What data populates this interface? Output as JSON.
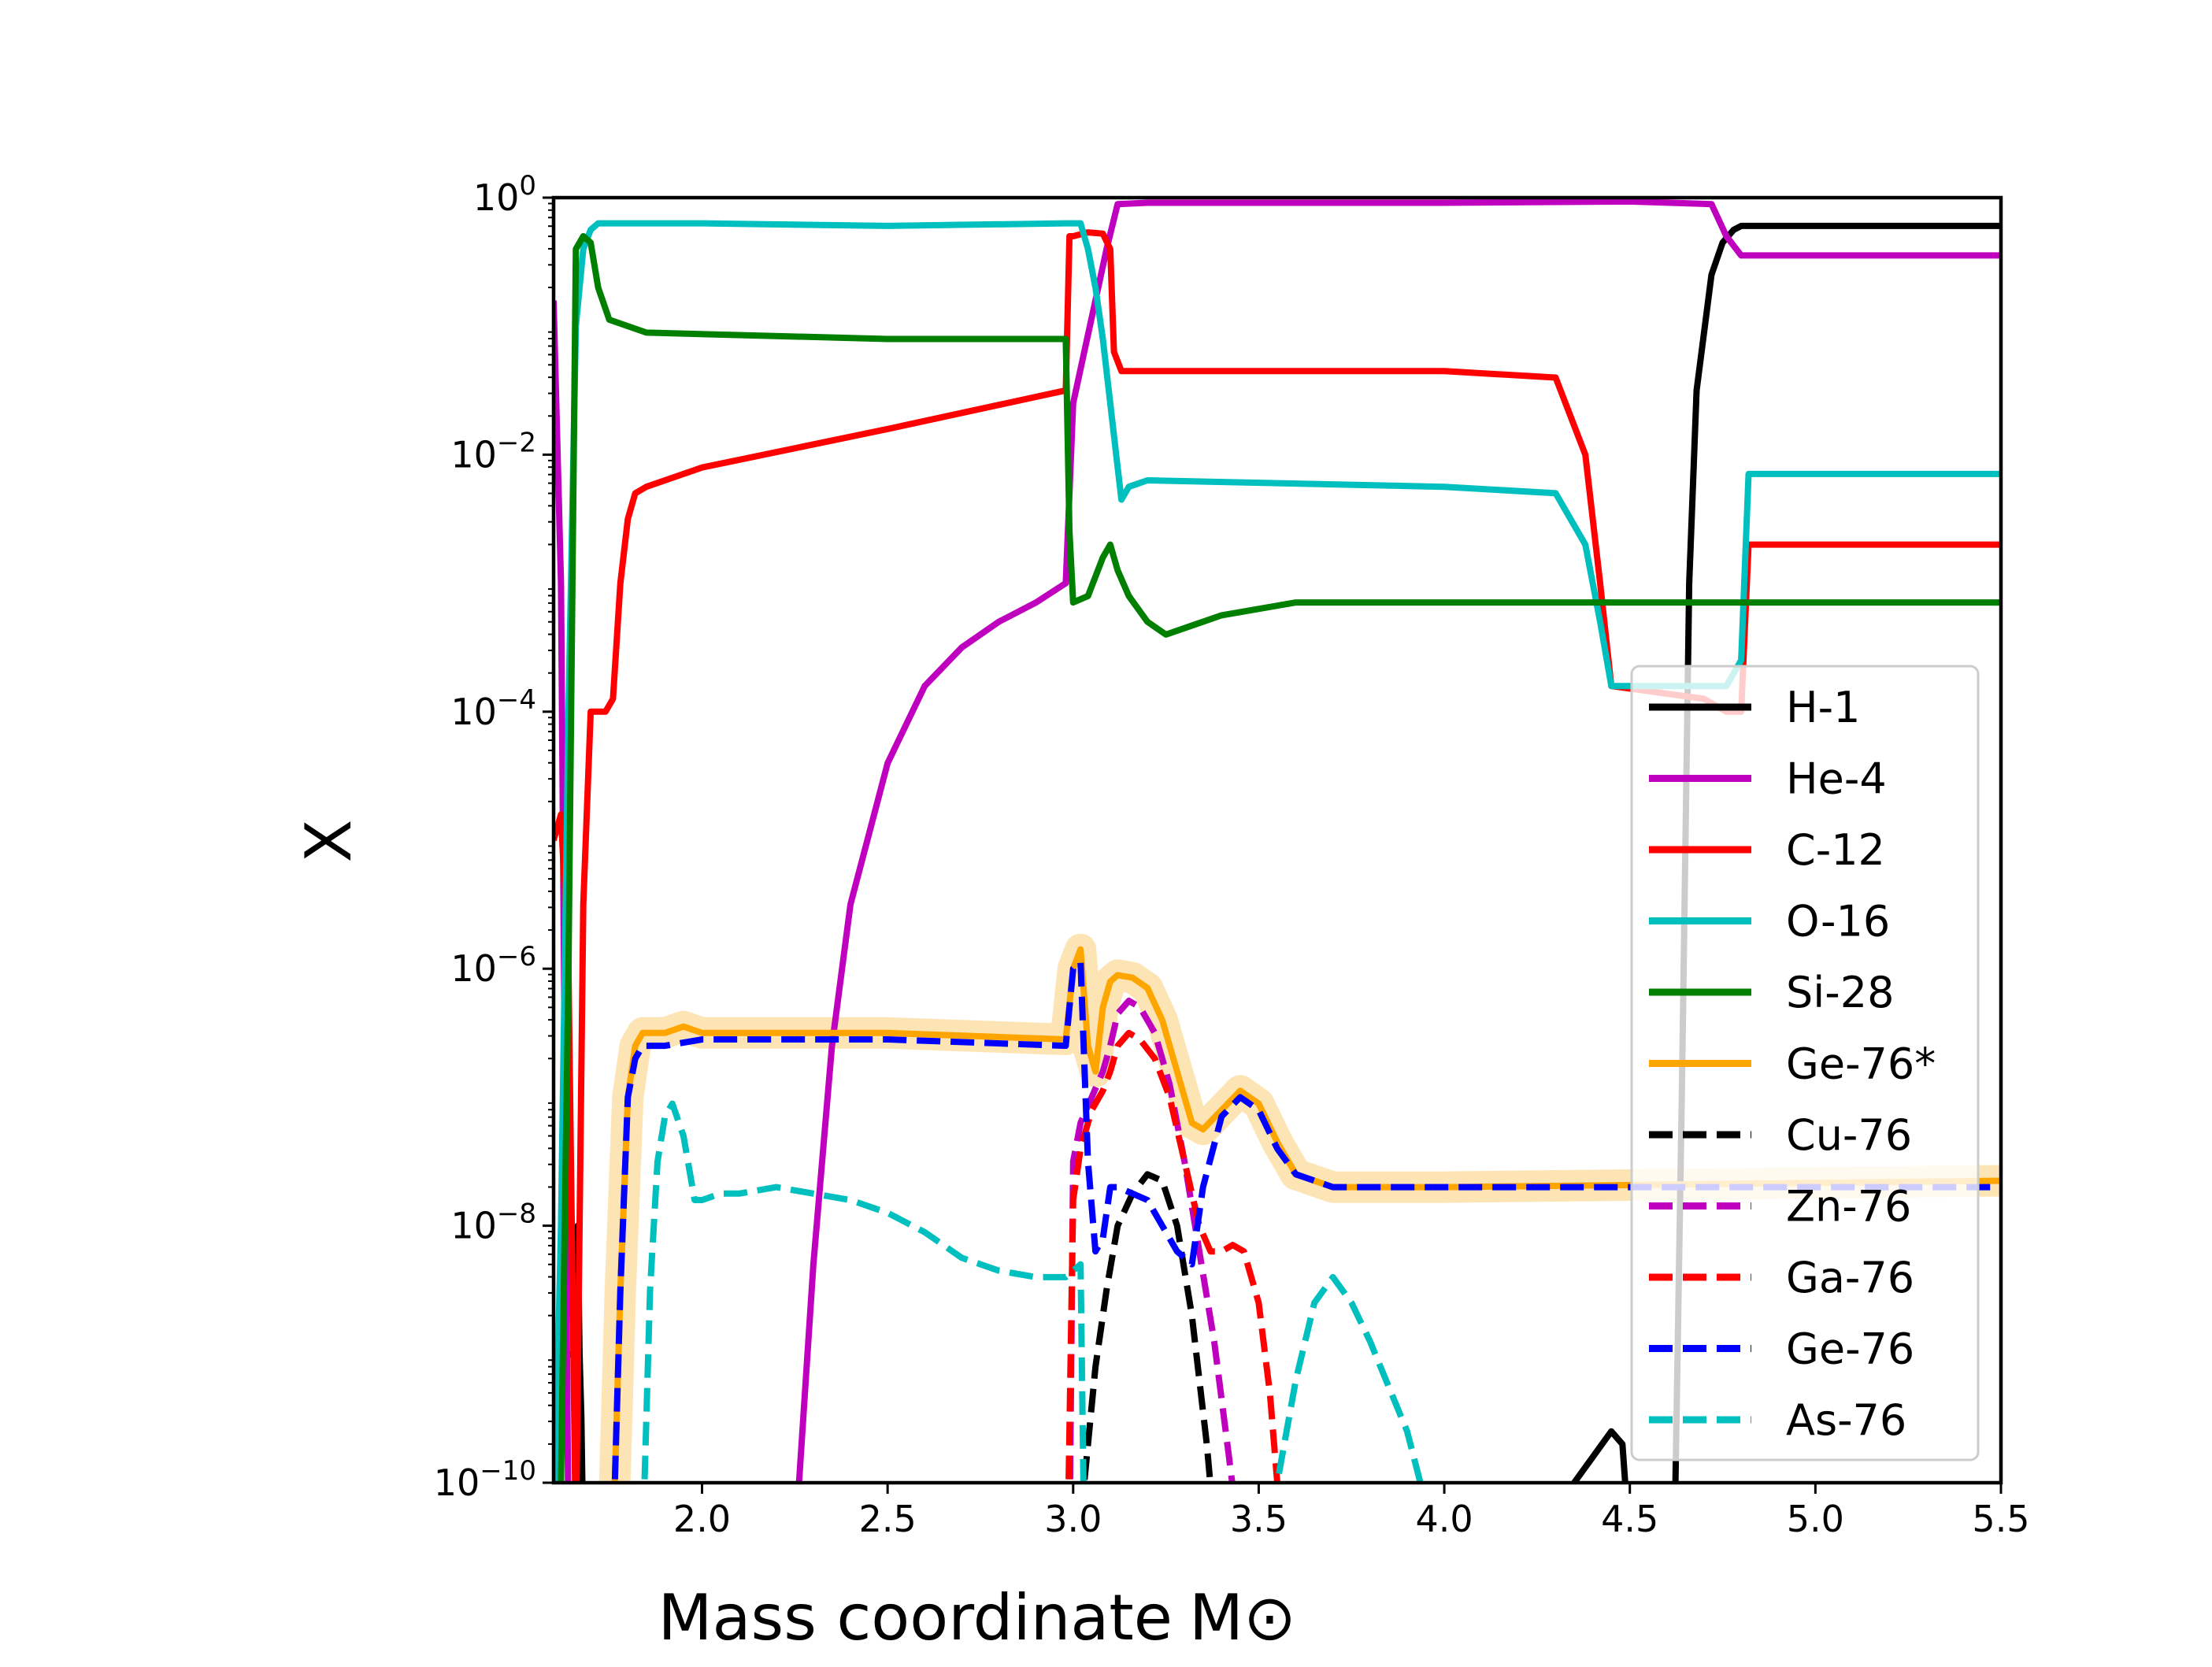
{
  "chart_data": {
    "type": "line",
    "title": "",
    "xlabel": "Mass coordinate",
    "xlabel_unit": "M⊙",
    "ylabel": "X",
    "xlim": [
      1.6,
      5.5
    ],
    "ylim": [
      1e-10,
      1.0
    ],
    "yscale": "log",
    "grid": false,
    "legend_position": "center-right",
    "x_ticks": [
      2.0,
      2.5,
      3.0,
      3.5,
      4.0,
      4.5,
      5.0,
      5.5
    ],
    "x_tick_labels": [
      "2.0",
      "2.5",
      "3.0",
      "3.5",
      "4.0",
      "4.5",
      "5.0",
      "5.5"
    ],
    "y_ticks": [
      {
        "exp": 0,
        "base": "10",
        "sup": "0"
      },
      {
        "exp": -2,
        "base": "10",
        "sup": "−2"
      },
      {
        "exp": -4,
        "base": "10",
        "sup": "−4"
      },
      {
        "exp": -6,
        "base": "10",
        "sup": "−6"
      },
      {
        "exp": -8,
        "base": "10",
        "sup": "−8"
      },
      {
        "exp": -10,
        "base": "10",
        "sup": "−10"
      }
    ],
    "series": [
      {
        "name": "H-1",
        "color": "#000000",
        "style": "solid",
        "x": [
          1.61,
          1.66,
          1.665,
          1.67,
          1.675,
          1.68,
          4.3,
          4.35,
          4.4,
          4.45,
          4.48,
          4.5,
          4.62,
          4.64,
          4.66,
          4.68,
          4.72,
          4.75,
          4.78,
          4.8,
          5.5
        ],
        "logy": [
          -9.0,
          -9.0,
          -8.0,
          -9.0,
          -9.5,
          -10.5,
          -10.5,
          -10.0,
          -9.8,
          -9.6,
          -9.7,
          -10.5,
          -10.5,
          -7.0,
          -3.0,
          -1.5,
          -0.6,
          -0.35,
          -0.25,
          -0.22,
          -0.22
        ]
      },
      {
        "name": "He-4",
        "color": "#bf00bf",
        "style": "solid",
        "x": [
          1.6,
          1.62,
          1.64,
          2.25,
          2.3,
          2.35,
          2.4,
          2.5,
          2.6,
          2.7,
          2.8,
          2.9,
          2.98,
          3.0,
          3.03,
          3.06,
          3.09,
          3.12,
          3.2,
          4.0,
          4.5,
          4.72,
          4.76,
          4.8,
          5.5
        ],
        "logy": [
          -0.8,
          -3.0,
          -10.5,
          -10.5,
          -8.3,
          -6.6,
          -5.5,
          -4.4,
          -3.8,
          -3.5,
          -3.3,
          -3.15,
          -3.0,
          -1.6,
          -1.2,
          -0.8,
          -0.4,
          -0.05,
          -0.04,
          -0.04,
          -0.03,
          -0.05,
          -0.3,
          -0.45,
          -0.45
        ]
      },
      {
        "name": "C-12",
        "color": "#ff0000",
        "style": "solid",
        "x": [
          1.6,
          1.62,
          1.64,
          1.66,
          1.68,
          1.7,
          1.72,
          1.74,
          1.76,
          1.78,
          1.8,
          1.82,
          1.85,
          1.9,
          2.0,
          2.5,
          2.98,
          2.99,
          3.0,
          3.04,
          3.08,
          3.1,
          3.11,
          3.13,
          3.2,
          4.0,
          4.3,
          4.38,
          4.42,
          4.45,
          4.7,
          4.76,
          4.8,
          4.82,
          5.5
        ],
        "logy": [
          -5.0,
          -4.8,
          -6.0,
          -10.5,
          -5.5,
          -4.0,
          -4.0,
          -4.0,
          -3.9,
          -3.0,
          -2.5,
          -2.3,
          -2.25,
          -2.2,
          -2.1,
          -1.8,
          -1.5,
          -0.3,
          -0.3,
          -0.27,
          -0.28,
          -0.4,
          -1.2,
          -1.35,
          -1.35,
          -1.35,
          -1.4,
          -2.0,
          -3.0,
          -3.8,
          -3.9,
          -4.0,
          -4.0,
          -2.7,
          -2.7
        ]
      },
      {
        "name": "O-16",
        "color": "#00bfbf",
        "style": "solid",
        "x": [
          1.6,
          1.62,
          1.64,
          1.66,
          1.68,
          1.7,
          1.72,
          1.74,
          2.0,
          2.5,
          2.98,
          3.02,
          3.04,
          3.06,
          3.08,
          3.1,
          3.12,
          3.13,
          3.15,
          3.2,
          4.0,
          4.3,
          4.38,
          4.42,
          4.45,
          4.7,
          4.76,
          4.8,
          4.82,
          5.5
        ],
        "logy": [
          -10.5,
          -8.0,
          -4.0,
          -1.0,
          -0.4,
          -0.25,
          -0.2,
          -0.2,
          -0.2,
          -0.22,
          -0.2,
          -0.2,
          -0.4,
          -0.7,
          -1.1,
          -1.6,
          -2.1,
          -2.35,
          -2.25,
          -2.2,
          -2.25,
          -2.3,
          -2.7,
          -3.3,
          -3.8,
          -3.8,
          -3.8,
          -3.6,
          -2.15,
          -2.15
        ]
      },
      {
        "name": "Si-28",
        "color": "#007f00",
        "style": "solid",
        "x": [
          1.6,
          1.62,
          1.64,
          1.66,
          1.68,
          1.7,
          1.72,
          1.75,
          1.85,
          2.5,
          2.98,
          2.99,
          3.0,
          3.04,
          3.08,
          3.1,
          3.12,
          3.15,
          3.2,
          3.25,
          3.3,
          3.4,
          3.6,
          4.0,
          5.5
        ],
        "logy": [
          -10.5,
          -10.0,
          -6.0,
          -0.4,
          -0.3,
          -0.35,
          -0.7,
          -0.95,
          -1.05,
          -1.1,
          -1.1,
          -2.6,
          -3.15,
          -3.1,
          -2.8,
          -2.7,
          -2.9,
          -3.1,
          -3.3,
          -3.4,
          -3.35,
          -3.25,
          -3.15,
          -3.15,
          -3.15
        ]
      },
      {
        "name": "Ge-76*",
        "color": "#ffa500",
        "style": "solid",
        "halo": "#fde1ac",
        "x": [
          1.76,
          1.78,
          1.8,
          1.82,
          1.84,
          1.9,
          1.95,
          2.0,
          2.5,
          2.98,
          3.0,
          3.02,
          3.04,
          3.06,
          3.08,
          3.1,
          3.12,
          3.16,
          3.2,
          3.24,
          3.28,
          3.32,
          3.35,
          3.4,
          3.45,
          3.5,
          3.55,
          3.6,
          3.7,
          4.0,
          5.5
        ],
        "logy": [
          -10.5,
          -8.5,
          -7.0,
          -6.6,
          -6.5,
          -6.5,
          -6.45,
          -6.5,
          -6.5,
          -6.55,
          -6.0,
          -5.85,
          -6.6,
          -6.8,
          -6.3,
          -6.1,
          -6.05,
          -6.07,
          -6.15,
          -6.4,
          -6.8,
          -7.2,
          -7.25,
          -7.1,
          -6.95,
          -7.05,
          -7.35,
          -7.6,
          -7.7,
          -7.7,
          -7.65
        ]
      },
      {
        "name": "Cu-76",
        "color": "#000000",
        "style": "dashed",
        "x": [
          3.01,
          3.03,
          3.06,
          3.09,
          3.12,
          3.16,
          3.2,
          3.24,
          3.28,
          3.32,
          3.36,
          3.385
        ],
        "logy": [
          -10.5,
          -10.0,
          -9.1,
          -8.5,
          -8.0,
          -7.75,
          -7.6,
          -7.65,
          -8.0,
          -8.7,
          -9.7,
          -10.5
        ]
      },
      {
        "name": "Zn-76",
        "color": "#bf00bf",
        "style": "dashed",
        "x": [
          2.99,
          3.0,
          3.02,
          3.05,
          3.08,
          3.1,
          3.12,
          3.15,
          3.18,
          3.22,
          3.26,
          3.3,
          3.34,
          3.38,
          3.42,
          3.45
        ],
        "logy": [
          -10.5,
          -7.5,
          -7.2,
          -7.0,
          -6.8,
          -6.6,
          -6.35,
          -6.25,
          -6.3,
          -6.5,
          -6.9,
          -7.5,
          -8.2,
          -8.9,
          -9.8,
          -10.5
        ]
      },
      {
        "name": "Ga-76",
        "color": "#ff0000",
        "style": "dashed",
        "x": [
          2.985,
          3.0,
          3.02,
          3.05,
          3.08,
          3.1,
          3.12,
          3.15,
          3.18,
          3.22,
          3.26,
          3.3,
          3.34,
          3.37,
          3.4,
          3.43,
          3.46,
          3.5,
          3.53,
          3.55,
          3.57
        ],
        "logy": [
          -10.5,
          -7.8,
          -7.4,
          -7.1,
          -6.95,
          -6.8,
          -6.6,
          -6.5,
          -6.55,
          -6.7,
          -7.0,
          -7.5,
          -8.0,
          -8.2,
          -8.2,
          -8.15,
          -8.2,
          -8.6,
          -9.3,
          -10.0,
          -10.5
        ]
      },
      {
        "name": "Ge-76",
        "color": "#0000ff",
        "style": "dashed",
        "x": [
          1.76,
          1.78,
          1.8,
          1.82,
          1.84,
          1.9,
          2.0,
          2.5,
          2.98,
          3.0,
          3.02,
          3.04,
          3.06,
          3.08,
          3.1,
          3.12,
          3.16,
          3.2,
          3.24,
          3.28,
          3.32,
          3.35,
          3.4,
          3.45,
          3.5,
          3.55,
          3.6,
          3.7,
          4.0,
          5.5
        ],
        "logy": [
          -10.5,
          -8.5,
          -7.0,
          -6.7,
          -6.6,
          -6.6,
          -6.55,
          -6.55,
          -6.6,
          -6.0,
          -5.95,
          -7.5,
          -8.2,
          -8.1,
          -7.7,
          -7.7,
          -7.75,
          -7.8,
          -8.0,
          -8.2,
          -8.3,
          -7.7,
          -7.15,
          -7.0,
          -7.1,
          -7.4,
          -7.6,
          -7.7,
          -7.7,
          -7.7
        ]
      },
      {
        "name": "As-76",
        "color": "#00bfbf",
        "style": "dashed",
        "x": [
          1.84,
          1.86,
          1.88,
          1.9,
          1.92,
          1.95,
          1.98,
          2.0,
          2.05,
          2.1,
          2.2,
          2.3,
          2.4,
          2.5,
          2.6,
          2.7,
          2.8,
          2.9,
          2.98,
          3.0,
          3.02,
          3.03,
          3.1,
          3.2,
          3.3,
          3.4,
          3.5,
          3.55,
          3.6,
          3.65,
          3.7,
          3.75,
          3.8,
          3.9,
          3.98
        ],
        "logy": [
          -10.5,
          -8.5,
          -7.5,
          -7.15,
          -7.05,
          -7.3,
          -7.8,
          -7.8,
          -7.75,
          -7.75,
          -7.7,
          -7.75,
          -7.8,
          -7.9,
          -8.05,
          -8.25,
          -8.35,
          -8.4,
          -8.4,
          -8.35,
          -8.3,
          -10.5,
          -10.5,
          -10.5,
          -10.5,
          -10.5,
          -10.5,
          -10.0,
          -9.2,
          -8.6,
          -8.4,
          -8.6,
          -8.9,
          -9.6,
          -10.5
        ]
      }
    ]
  }
}
